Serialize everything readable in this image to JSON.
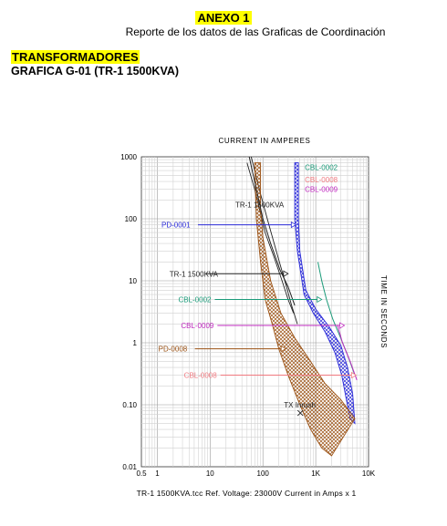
{
  "header": {
    "annex_title": "ANEXO 1",
    "subtitle": "Reporte de los datos de las Graficas de Coordinación",
    "section_title": "TRANSFORMADORES",
    "figure_title": "GRAFICA G-01 (TR-1 1500KVA)"
  },
  "footer": {
    "caption": "TR-1 1500KVA.tcc   Ref. Voltage: 23000V   Current in Amps x 1"
  },
  "chart_data": {
    "type": "line",
    "title": "CURRENT IN AMPERES",
    "xlabel": "CURRENT IN AMPERES",
    "ylabel": "TIME IN SECONDS",
    "xscale": "log",
    "yscale": "log",
    "xlim": [
      0.5,
      10000
    ],
    "ylim": [
      0.01,
      1000
    ],
    "x_ticks": [
      {
        "value": 0.5,
        "label": "0.5"
      },
      {
        "value": 1,
        "label": "1"
      },
      {
        "value": 10,
        "label": "10"
      },
      {
        "value": 100,
        "label": "100"
      },
      {
        "value": 1000,
        "label": "1K"
      },
      {
        "value": 10000,
        "label": "10K"
      }
    ],
    "y_ticks": [
      {
        "value": 1000,
        "label": "1000"
      },
      {
        "value": 100,
        "label": "100"
      },
      {
        "value": 10,
        "label": "10"
      },
      {
        "value": 1,
        "label": "1"
      },
      {
        "value": 0.1,
        "label": "0.10"
      },
      {
        "value": 0.01,
        "label": "0.01"
      }
    ],
    "grid": true,
    "series": [
      {
        "name": "CBL-0002",
        "color": "#1a9a78",
        "kind": "line",
        "points": [
          [
            1100,
            20
          ],
          [
            1300,
            10
          ],
          [
            1600,
            5
          ],
          [
            2100,
            2.4
          ],
          [
            2900,
            1.25
          ],
          [
            4100,
            0.6
          ],
          [
            5500,
            0.3
          ]
        ],
        "marker_x": 1300,
        "label_x": 2.5,
        "label_y": 5,
        "label2_x": 620,
        "label2_y": 680
      },
      {
        "name": "CBL-0008",
        "color": "#f07a80",
        "kind": "line",
        "points": [
          [
            5000,
            0.3
          ],
          [
            5800,
            0.3
          ]
        ],
        "marker_x": 5800,
        "label_x": 3.2,
        "label_y": 0.3,
        "label2_x": 620,
        "label2_y": 430
      },
      {
        "name": "CBL-0009",
        "color": "#c02bc0",
        "kind": "line",
        "points": [
          [
            2600,
            1.9
          ],
          [
            3200,
            1.0
          ],
          [
            4500,
            0.5
          ],
          [
            6000,
            0.25
          ]
        ],
        "marker_x": 3500,
        "label_x": 2.8,
        "label_y": 1.9,
        "label2_x": 620,
        "label2_y": 300
      },
      {
        "name": "PD-0001",
        "color": "#2a2ad8",
        "kind": "band",
        "lower": [
          [
            400,
            800
          ],
          [
            400,
            100
          ],
          [
            450,
            30
          ],
          [
            600,
            6
          ],
          [
            900,
            3
          ],
          [
            1500,
            1.5
          ],
          [
            2300,
            0.7
          ],
          [
            3100,
            0.3
          ],
          [
            3800,
            0.12
          ],
          [
            4500,
            0.06
          ]
        ],
        "upper": [
          [
            470,
            800
          ],
          [
            470,
            100
          ],
          [
            500,
            30
          ],
          [
            650,
            7
          ],
          [
            1000,
            3.5
          ],
          [
            1800,
            1.8
          ],
          [
            3000,
            0.9
          ],
          [
            4000,
            0.4
          ],
          [
            5000,
            0.15
          ],
          [
            5500,
            0.05
          ]
        ],
        "marker_x": 420,
        "label_x": 1.2,
        "label_y": 80
      },
      {
        "name": "PD-0008",
        "color": "#9c5316",
        "kind": "band",
        "lower": [
          [
            70,
            800
          ],
          [
            75,
            100
          ],
          [
            90,
            20
          ],
          [
            110,
            5
          ],
          [
            150,
            2
          ],
          [
            200,
            0.8
          ],
          [
            300,
            0.3
          ],
          [
            500,
            0.1
          ],
          [
            800,
            0.04
          ],
          [
            1300,
            0.02
          ],
          [
            2000,
            0.015
          ]
        ],
        "upper": [
          [
            90,
            800
          ],
          [
            90,
            150
          ],
          [
            100,
            50
          ],
          [
            140,
            10
          ],
          [
            220,
            3
          ],
          [
            400,
            1.2
          ],
          [
            800,
            0.5
          ],
          [
            1500,
            0.22
          ],
          [
            3000,
            0.12
          ],
          [
            5500,
            0.06
          ]
        ],
        "marker_x": 270,
        "label_x": 1.05,
        "label_y": 0.8
      },
      {
        "name": "TR-1 1500KVA",
        "color": "#222222",
        "kind": "line",
        "points": [
          [
            55,
            1000
          ],
          [
            75,
            300
          ],
          [
            100,
            100
          ],
          [
            140,
            40
          ],
          [
            210,
            15
          ],
          [
            300,
            8
          ],
          [
            400,
            4
          ]
        ],
        "marker_x": 300,
        "label_x": 1.7,
        "label_y": 13,
        "label2_x": 30,
        "label2_y": 170
      }
    ],
    "extra_curves": [
      {
        "points": [
          [
            60,
            1000
          ],
          [
            90,
            250
          ],
          [
            130,
            80
          ],
          [
            190,
            25
          ],
          [
            260,
            10
          ],
          [
            350,
            4
          ],
          [
            450,
            2
          ]
        ]
      },
      {
        "points": [
          [
            50,
            800
          ],
          [
            70,
            300
          ],
          [
            110,
            60
          ],
          [
            160,
            25
          ],
          [
            230,
            10
          ],
          [
            300,
            5
          ],
          [
            380,
            3
          ]
        ]
      }
    ],
    "annotations": [
      {
        "text": "TX Inrush",
        "x": 250,
        "y": 0.09,
        "color": "#222222"
      }
    ]
  }
}
